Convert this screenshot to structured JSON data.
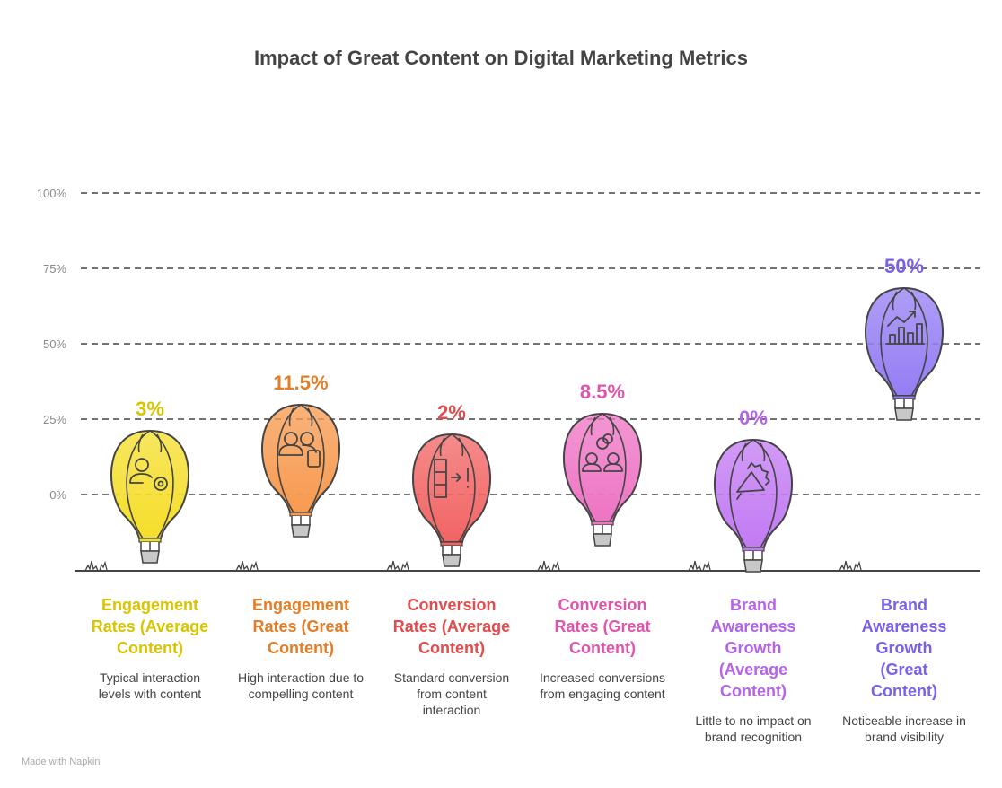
{
  "chart_data": {
    "type": "pictorial-bar",
    "title": "Impact of Great Content on Digital Marketing Metrics",
    "ylim": [
      0,
      100
    ],
    "yticks": [
      "0%",
      "25%",
      "50%",
      "75%",
      "100%"
    ],
    "grid": true,
    "categories": [
      "Engagement Rates (Average Content)",
      "Engagement Rates (Great Content)",
      "Conversion Rates (Average Content)",
      "Conversion Rates (Great Content)",
      "Brand Awareness Growth (Average Content)",
      "Brand Awareness Growth (Great Content)"
    ],
    "values": [
      3,
      11.5,
      2,
      8.5,
      0,
      50
    ],
    "value_labels": [
      "3%",
      "11.5%",
      "2%",
      "8.5%",
      "0%",
      "50%"
    ],
    "descriptions": [
      "Typical interaction levels with content",
      "High interaction due to compelling content",
      "Standard conversion from content interaction",
      "Increased conversions from engaging content",
      "Little to no impact on brand recognition",
      "Noticeable increase in brand visibility"
    ],
    "colors": [
      "#f5de2a",
      "#f79a4f",
      "#f26464",
      "#ee74c4",
      "#c27af3",
      "#957df3"
    ],
    "text_colors": [
      "#d8c400",
      "#e27d28",
      "#e24c4c",
      "#e055ac",
      "#b563ea",
      "#7a5fea"
    ],
    "icons": [
      "user-gear-icon",
      "users-phone-icon",
      "conversion-funnel-icon",
      "people-exchange-icon",
      "megaphone-icon",
      "growth-chart-icon"
    ]
  },
  "footer": "Made with Napkin"
}
